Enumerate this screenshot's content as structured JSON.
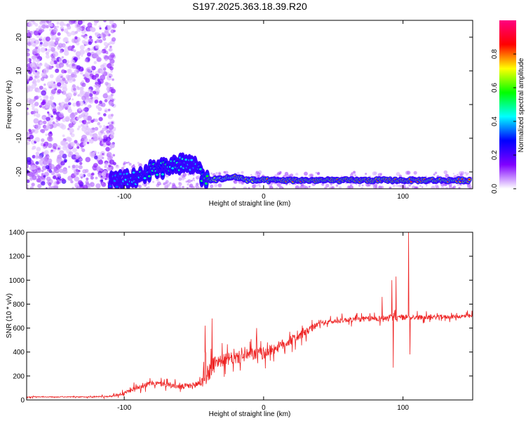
{
  "title": "S197.2025.363.18.39.R20",
  "chart_data": [
    {
      "type": "heatmap",
      "name": "spectrogram",
      "xlabel": "Height of straight line (km)",
      "ylabel": "Frequency (Hz)",
      "xlim": [
        -170,
        150
      ],
      "ylim": [
        -25,
        25
      ],
      "x_ticks": [
        "-100",
        "0",
        "100"
      ],
      "y_ticks": [
        "-20",
        "-10",
        "0",
        "10",
        "20"
      ],
      "grid": false,
      "colorbar": {
        "label": "Normalized spectral amplitude",
        "range": [
          0,
          1
        ],
        "ticks": [
          "0.0",
          "0.2",
          "0.4",
          "0.6",
          "0.8"
        ],
        "colors": [
          "#ffffff",
          "#8000ff",
          "#0000ff",
          "#00ffff",
          "#00ff00",
          "#ffff00",
          "#ff0000",
          "#ff0080"
        ]
      },
      "features": {
        "noise_region_x": [
          -170,
          -107
        ],
        "signal_trace": [
          {
            "x": -110,
            "y": -22.5,
            "amp": 0.35
          },
          {
            "x": -100,
            "y": -22.5,
            "amp": 0.4
          },
          {
            "x": -90,
            "y": -21.5,
            "amp": 0.45
          },
          {
            "x": -80,
            "y": -19.5,
            "amp": 0.5
          },
          {
            "x": -70,
            "y": -18.5,
            "amp": 0.5
          },
          {
            "x": -60,
            "y": -17.5,
            "amp": 0.45
          },
          {
            "x": -50,
            "y": -18.5,
            "amp": 0.4
          },
          {
            "x": -40,
            "y": -22.5,
            "amp": 0.6
          },
          {
            "x": -30,
            "y": -22.0,
            "amp": 0.8
          },
          {
            "x": -20,
            "y": -21.5,
            "amp": 0.85
          },
          {
            "x": -10,
            "y": -22.5,
            "amp": 0.8
          },
          {
            "x": 0,
            "y": -22.5,
            "amp": 0.85
          },
          {
            "x": 20,
            "y": -22.5,
            "amp": 0.9
          },
          {
            "x": 60,
            "y": -22.5,
            "amp": 0.9
          },
          {
            "x": 100,
            "y": -22.5,
            "amp": 0.9
          },
          {
            "x": 148,
            "y": -22.5,
            "amp": 0.85
          }
        ]
      }
    },
    {
      "type": "line",
      "name": "snr",
      "xlabel": "Height of straight line (km)",
      "ylabel": "SNR (10 * v/v)",
      "xlim": [
        -170,
        150
      ],
      "ylim": [
        0,
        1400
      ],
      "x_ticks": [
        "-100",
        "0",
        "100"
      ],
      "y_ticks": [
        "0",
        "200",
        "400",
        "600",
        "800",
        "1000",
        "1200",
        "1400"
      ],
      "grid": false,
      "color": "#ee2222",
      "envelope": {
        "x": [
          -170,
          -130,
          -110,
          -100,
          -90,
          -80,
          -70,
          -60,
          -50,
          -45,
          -40,
          -35,
          -30,
          -20,
          -10,
          0,
          10,
          20,
          30,
          40,
          60,
          80,
          100,
          120,
          150
        ],
        "base": [
          25,
          25,
          30,
          55,
          110,
          140,
          130,
          110,
          120,
          150,
          220,
          320,
          330,
          350,
          380,
          390,
          440,
          500,
          560,
          640,
          670,
          680,
          690,
          690,
          700
        ],
        "amp": [
          10,
          10,
          20,
          40,
          60,
          60,
          60,
          60,
          80,
          150,
          250,
          160,
          150,
          150,
          150,
          150,
          130,
          120,
          100,
          60,
          60,
          70,
          70,
          50,
          50
        ]
      },
      "spikes": [
        {
          "x": -42,
          "y": 620
        },
        {
          "x": -37,
          "y": 680
        },
        {
          "x": -5,
          "y": 600
        },
        {
          "x": 85,
          "y": 860
        },
        {
          "x": 92,
          "y": 1000
        },
        {
          "x": 93,
          "y": 270
        },
        {
          "x": 95,
          "y": 1030
        },
        {
          "x": 104,
          "y": 1400
        },
        {
          "x": 105,
          "y": 380
        }
      ]
    }
  ]
}
